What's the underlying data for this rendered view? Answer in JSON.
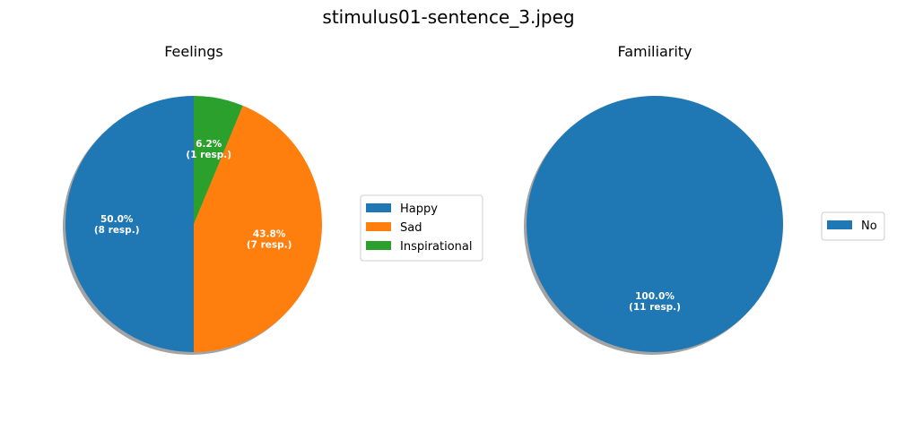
{
  "figure": {
    "title": "stimulus01-sentence_3.jpeg"
  },
  "chart_data": [
    {
      "type": "pie",
      "title": "Feelings",
      "categories": [
        "Happy",
        "Sad",
        "Inspirational"
      ],
      "values": [
        8,
        7,
        1
      ],
      "percent_labels": [
        "50.0%",
        "43.8%",
        "6.2%"
      ],
      "count_labels": [
        "(8 resp.)",
        "(7 resp.)",
        "(1 resp.)"
      ],
      "colors": [
        "#1f77b4",
        "#ff7f0e",
        "#2ca02c"
      ],
      "shadow": true,
      "legend_position": "right"
    },
    {
      "type": "pie",
      "title": "Familiarity",
      "categories": [
        "No"
      ],
      "values": [
        11
      ],
      "percent_labels": [
        "100.0%"
      ],
      "count_labels": [
        "(11 resp.)"
      ],
      "colors": [
        "#1f77b4"
      ],
      "shadow": true,
      "legend_position": "right"
    }
  ]
}
